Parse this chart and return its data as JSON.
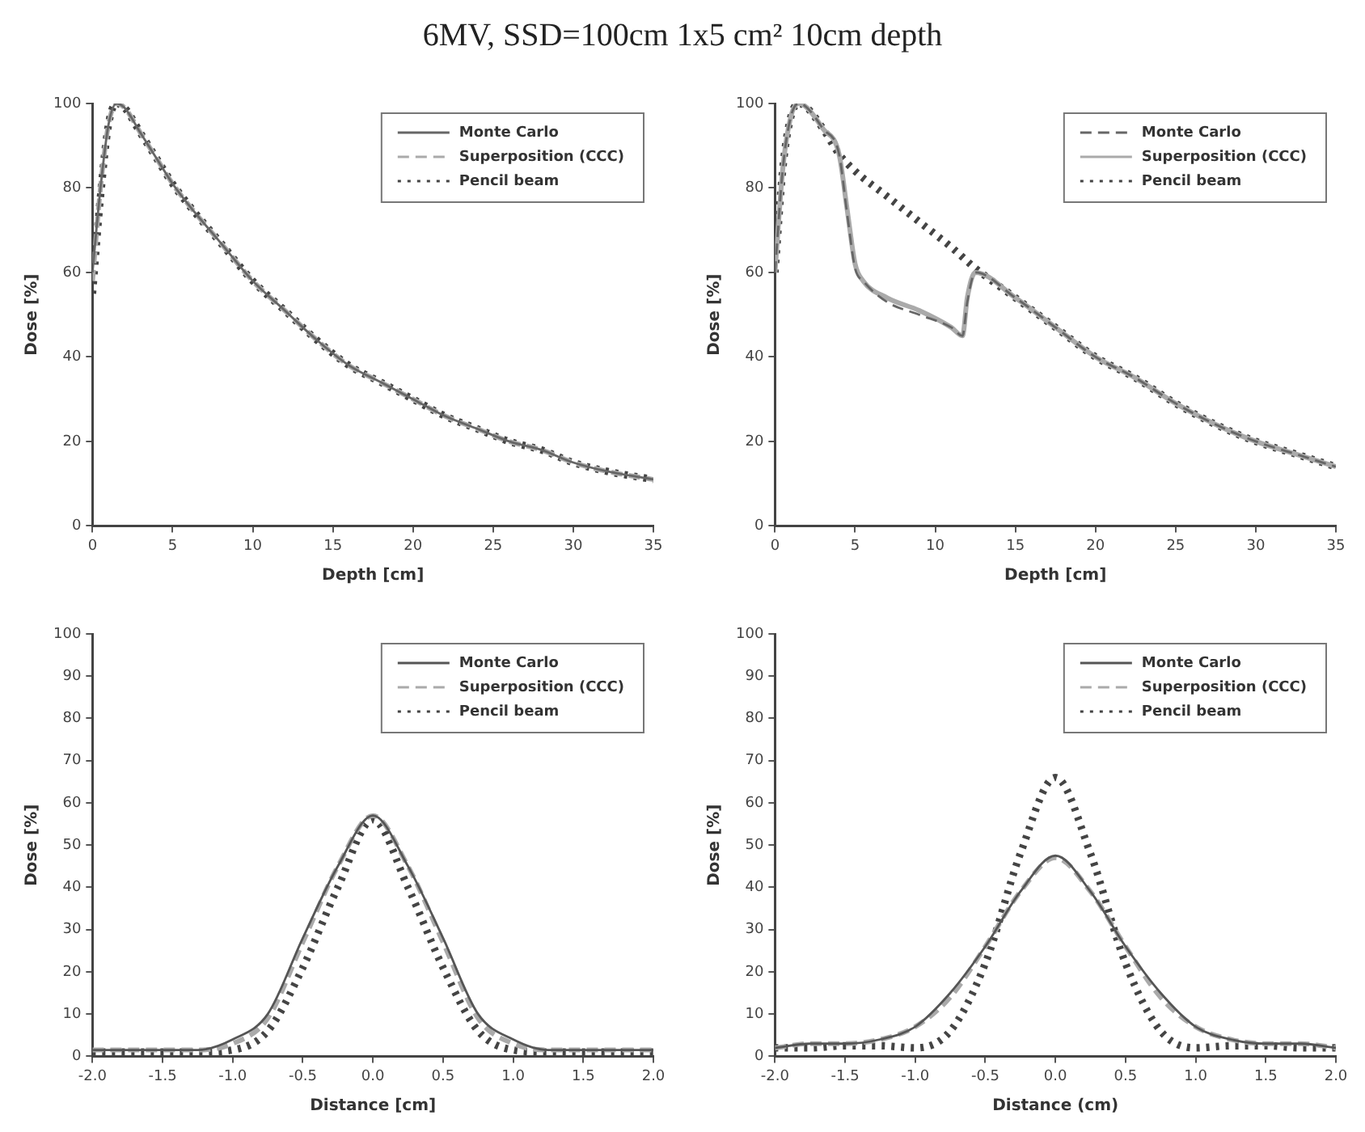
{
  "chart_data": [
    {
      "type": "line",
      "title": "6MV, SSD=100cm 1x5 cm² 10cm depth",
      "xlabel": "Depth [cm]",
      "ylabel": "Dose [%]",
      "xlim": [
        0,
        35
      ],
      "xticks": [
        0,
        5,
        10,
        15,
        20,
        25,
        30,
        35
      ],
      "ylim": [
        0,
        100
      ],
      "yticks": [
        0,
        20,
        40,
        60,
        80,
        100
      ],
      "legend": "top right",
      "marker": "none",
      "series": [
        {
          "name": "Monte Carlo",
          "color": "#666666",
          "line_style": "solid",
          "x": [
            0,
            0.5,
            1,
            1.5,
            2,
            3,
            4,
            5,
            6,
            8,
            10,
            12,
            14,
            16,
            18,
            20,
            22,
            24,
            26,
            28,
            30,
            32,
            35
          ],
          "values": [
            60,
            80,
            95,
            100,
            99,
            93,
            87,
            81,
            76,
            67,
            58,
            51,
            44,
            38,
            34,
            30,
            26,
            23,
            20,
            18,
            15,
            13,
            11
          ]
        },
        {
          "name": "Superposition (CCC)",
          "color": "#aaaaaa",
          "line_style": "dashed",
          "x": [
            0,
            0.5,
            1,
            1.5,
            2,
            3,
            4,
            5,
            6,
            8,
            10,
            12,
            14,
            16,
            18,
            20,
            22,
            24,
            26,
            28,
            30,
            32,
            35
          ],
          "values": [
            58,
            80,
            95,
            100,
            99,
            93,
            87,
            81,
            76,
            67,
            58,
            51,
            44,
            38,
            34,
            30,
            26,
            23,
            20,
            18,
            15,
            13,
            11
          ]
        },
        {
          "name": "Pencil beam",
          "color": "#444444",
          "line_style": "dotted",
          "x": [
            0,
            0.5,
            1,
            1.5,
            2,
            3,
            4,
            5,
            6,
            8,
            10,
            12,
            14,
            16,
            18,
            20,
            22,
            24,
            26,
            28,
            30,
            32,
            35
          ],
          "values": [
            55,
            78,
            95,
            100,
            99,
            93,
            87,
            81,
            76,
            67,
            58,
            51,
            44,
            38,
            34,
            30,
            26,
            23,
            20,
            18,
            15,
            13,
            11
          ]
        }
      ]
    },
    {
      "type": "line",
      "xlabel": "Depth [cm]",
      "ylabel": "Dose [%]",
      "xlim": [
        0,
        35
      ],
      "xticks": [
        0,
        5,
        10,
        15,
        20,
        25,
        30,
        35
      ],
      "ylim": [
        0,
        100
      ],
      "yticks": [
        0,
        20,
        40,
        60,
        80,
        100
      ],
      "legend": "top right",
      "marker": "none",
      "series": [
        {
          "name": "Monte Carlo",
          "color": "#666666",
          "line_style": "dashed",
          "x": [
            0,
            0.5,
            1,
            1.5,
            2,
            3,
            4,
            4.5,
            5,
            5.5,
            7,
            9,
            11,
            11.7,
            12,
            12.5,
            15,
            17.5,
            20,
            22.5,
            25,
            27.5,
            30,
            32.5,
            35
          ],
          "values": [
            60,
            85,
            97,
            100,
            99,
            94,
            88,
            74,
            61,
            58,
            53,
            50,
            47,
            45,
            53,
            60,
            54,
            47,
            40,
            35,
            29,
            24,
            20,
            17,
            14
          ]
        },
        {
          "name": "Superposition (CCC)",
          "color": "#aaaaaa",
          "line_style": "solid",
          "x": [
            0,
            0.5,
            1,
            1.5,
            2,
            3,
            4,
            4.5,
            5,
            5.5,
            7,
            9,
            11,
            11.7,
            12,
            12.5,
            15,
            17.5,
            20,
            22.5,
            25,
            27.5,
            30,
            32.5,
            35
          ],
          "values": [
            60,
            85,
            97,
            100,
            99,
            94,
            88,
            75,
            62,
            58,
            54,
            51,
            47,
            45,
            54,
            60,
            54,
            47,
            40,
            35,
            29,
            24,
            20,
            17,
            14
          ]
        },
        {
          "name": "Pencil beam",
          "color": "#444444",
          "line_style": "dotted",
          "x": [
            0,
            0.5,
            1,
            1.5,
            2,
            3,
            4,
            5,
            7,
            9,
            11,
            12.5,
            15,
            17.5,
            20,
            22.5,
            25,
            27.5,
            30,
            32.5,
            35
          ],
          "values": [
            60,
            85,
            97,
            100,
            99,
            94,
            88,
            84,
            78,
            72,
            66,
            61,
            54,
            47,
            40,
            35,
            29,
            24,
            20,
            17,
            14
          ]
        }
      ]
    },
    {
      "type": "line",
      "xlabel": "Distance [cm]",
      "ylabel": "Dose [%]",
      "xlim": [
        -2,
        2
      ],
      "xticks": [
        {
          "value": -2,
          "label": "-2.0"
        },
        {
          "value": -1.5,
          "label": "-1.5"
        },
        {
          "value": -1,
          "label": "-1.0"
        },
        {
          "value": -0.5,
          "label": "-0.5"
        },
        {
          "value": 0,
          "label": "0.0"
        },
        {
          "value": 0.5,
          "label": "0.5"
        },
        {
          "value": 1,
          "label": "1.0"
        },
        {
          "value": 1.5,
          "label": "1.5"
        },
        {
          "value": 2,
          "label": "2.0"
        }
      ],
      "ylim": [
        0,
        100
      ],
      "yticks": [
        0,
        10,
        20,
        30,
        40,
        50,
        60,
        70,
        80,
        90,
        100
      ],
      "legend": "top right",
      "marker": "none",
      "series": [
        {
          "name": "Monte Carlo",
          "color": "#555555",
          "line_style": "solid",
          "x": [
            -2,
            -1.75,
            -1.5,
            -1.25,
            -1,
            -0.75,
            -0.5,
            -0.25,
            0,
            0.25,
            0.5,
            0.75,
            1,
            1.25,
            1.5,
            1.75,
            2
          ],
          "values": [
            1.5,
            1.5,
            1.5,
            1.5,
            4,
            10,
            28,
            45,
            57,
            45,
            28,
            10,
            4,
            1.5,
            1.5,
            1.5,
            1.5
          ]
        },
        {
          "name": "Superposition (CCC)",
          "color": "#aaaaaa",
          "line_style": "dashed",
          "x": [
            -2,
            -1.75,
            -1.5,
            -1.25,
            -1,
            -0.75,
            -0.5,
            -0.25,
            0,
            0.25,
            0.5,
            0.75,
            1,
            1.25,
            1.5,
            1.75,
            2
          ],
          "values": [
            1.5,
            1.5,
            1.5,
            1.5,
            3,
            9,
            27,
            45,
            57,
            45,
            27,
            9,
            3,
            1.5,
            1.5,
            1.5,
            1.5
          ]
        },
        {
          "name": "Pencil beam",
          "color": "#444444",
          "line_style": "dotted",
          "x": [
            -2,
            -1.75,
            -1.5,
            -1.25,
            -1,
            -0.75,
            -0.5,
            -0.25,
            0,
            0.25,
            0.5,
            0.75,
            1,
            1.25,
            1.5,
            1.75,
            2
          ],
          "values": [
            1,
            1,
            1,
            1,
            1.5,
            6,
            21,
            40,
            56,
            40,
            21,
            6,
            1.5,
            1,
            1,
            1,
            1
          ]
        }
      ]
    },
    {
      "type": "line",
      "xlabel": "Distance (cm)",
      "ylabel": "Dose [%]",
      "xlim": [
        -2,
        2
      ],
      "xticks": [
        {
          "value": -2,
          "label": "-2.0"
        },
        {
          "value": -1.5,
          "label": "-1.5"
        },
        {
          "value": -1,
          "label": "-1.0"
        },
        {
          "value": -0.5,
          "label": "-0.5"
        },
        {
          "value": 0,
          "label": "0.0"
        },
        {
          "value": 0.5,
          "label": "0.5"
        },
        {
          "value": 1,
          "label": "1.0"
        },
        {
          "value": 1.5,
          "label": "1.5"
        },
        {
          "value": 2,
          "label": "2.0"
        }
      ],
      "ylim": [
        0,
        100
      ],
      "yticks": [
        0,
        10,
        20,
        30,
        40,
        50,
        60,
        70,
        80,
        90,
        100
      ],
      "legend": "top right",
      "marker": "none",
      "series": [
        {
          "name": "Monte Carlo",
          "color": "#555555",
          "line_style": "solid",
          "x": [
            -2,
            -1.75,
            -1.5,
            -1.25,
            -1,
            -0.75,
            -0.5,
            -0.25,
            0,
            0.25,
            0.5,
            0.75,
            1,
            1.25,
            1.5,
            1.75,
            2
          ],
          "values": [
            2,
            3,
            3,
            4,
            7,
            15,
            26,
            39,
            47.5,
            39,
            26,
            15,
            7,
            4,
            3,
            3,
            2
          ]
        },
        {
          "name": "Superposition (CCC)",
          "color": "#aaaaaa",
          "line_style": "dashed",
          "x": [
            -2,
            -1.75,
            -1.5,
            -1.25,
            -1,
            -0.75,
            -0.5,
            -0.25,
            0,
            0.25,
            0.5,
            0.75,
            1,
            1.25,
            1.5,
            1.75,
            2
          ],
          "values": [
            2,
            3,
            3,
            4,
            7,
            14,
            26,
            39,
            47,
            39,
            26,
            14,
            7,
            4,
            3,
            3,
            2
          ]
        },
        {
          "name": "Pencil beam",
          "color": "#444444",
          "line_style": "dotted",
          "x": [
            -2,
            -1.75,
            -1.5,
            -1.25,
            -1,
            -0.75,
            -0.5,
            -0.25,
            0,
            0.25,
            0.5,
            0.75,
            1,
            1.25,
            1.5,
            1.75,
            2
          ],
          "values": [
            2,
            2,
            2.5,
            2.5,
            2,
            6,
            22,
            48,
            66,
            48,
            22,
            6,
            2,
            2.5,
            2.5,
            2,
            2
          ]
        }
      ]
    }
  ]
}
